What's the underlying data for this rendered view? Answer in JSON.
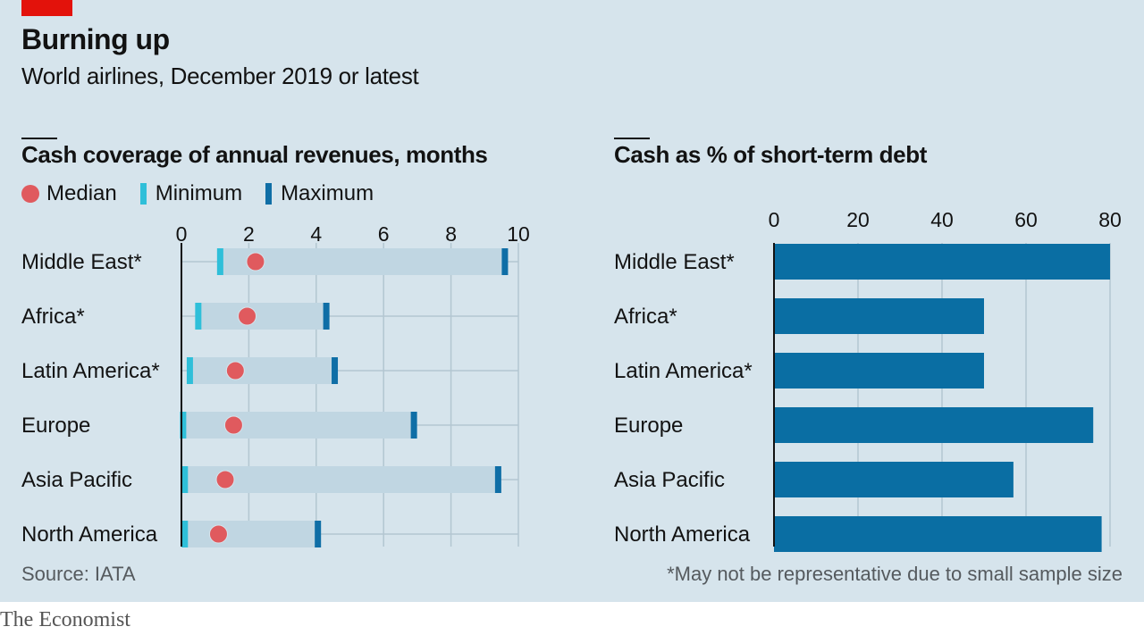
{
  "header": {
    "title": "Burning up",
    "subtitle": "World airlines, December 2019 or latest"
  },
  "colors": {
    "background": "#d6e4ec",
    "median": "#e05a5e",
    "minimum": "#2fbfd9",
    "maximum": "#0f6ea6",
    "range_band": "#c0d6e2",
    "bar": "#0a6ea3",
    "brand_red": "#e3120b"
  },
  "legend": {
    "median": "Median",
    "minimum": "Minimum",
    "maximum": "Maximum"
  },
  "source": "Source: IATA",
  "footnote": "*May not be representative due to small sample size",
  "brand": "The Economist",
  "chart_data": [
    {
      "type": "range-dot",
      "title": "Cash coverage of annual revenues, months",
      "categories": [
        "Middle East*",
        "Africa*",
        "Latin America*",
        "Europe",
        "Asia Pacific",
        "North America"
      ],
      "series": [
        {
          "name": "Median",
          "values": [
            2.2,
            1.95,
            1.6,
            1.55,
            1.3,
            1.1
          ]
        },
        {
          "name": "Minimum",
          "values": [
            1.15,
            0.5,
            0.25,
            0.05,
            0.1,
            0.1
          ]
        },
        {
          "name": "Maximum",
          "values": [
            9.6,
            4.3,
            4.55,
            6.9,
            9.4,
            4.05
          ]
        }
      ],
      "xlim": [
        0,
        10
      ],
      "xticks": [
        0,
        2,
        4,
        6,
        8,
        10
      ],
      "grid": true,
      "legend_position": "top-left"
    },
    {
      "type": "bar",
      "title": "Cash as % of short-term debt",
      "categories": [
        "Middle East*",
        "Africa*",
        "Latin America*",
        "Europe",
        "Asia Pacific",
        "North America"
      ],
      "values": [
        80,
        50,
        50,
        76,
        57,
        78
      ],
      "xlim": [
        0,
        80
      ],
      "xticks": [
        0,
        20,
        40,
        60,
        80
      ],
      "grid": true
    }
  ]
}
